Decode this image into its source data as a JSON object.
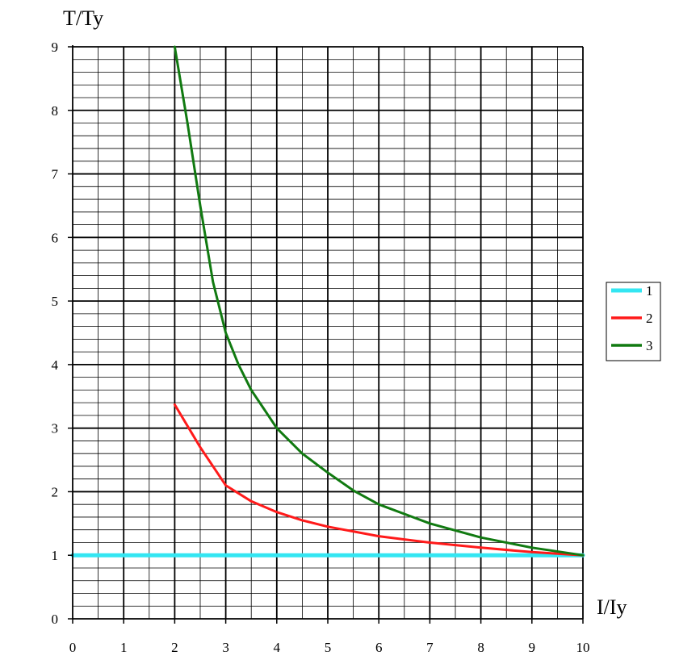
{
  "chart_data": {
    "type": "line",
    "xlabel": "I/Iy",
    "ylabel": "T/Ty",
    "xlim": [
      0,
      10
    ],
    "ylim": [
      0,
      9
    ],
    "x_ticks": [
      "0",
      "1",
      "2",
      "3",
      "4",
      "5",
      "6",
      "7",
      "8",
      "9",
      "10"
    ],
    "y_ticks": [
      "0",
      "1",
      "2",
      "3",
      "4",
      "5",
      "6",
      "7",
      "8",
      "9"
    ],
    "grid": true,
    "legend_position": "right",
    "series": [
      {
        "name": "1",
        "color": "#33e6f2",
        "x": [
          0,
          10
        ],
        "y": [
          1,
          1
        ]
      },
      {
        "name": "2",
        "color": "#ff1a1a",
        "x": [
          2,
          2.5,
          3,
          3.5,
          4,
          4.5,
          5,
          6,
          7,
          8,
          9,
          10
        ],
        "y": [
          3.37,
          2.7,
          2.1,
          1.85,
          1.68,
          1.55,
          1.45,
          1.3,
          1.2,
          1.12,
          1.05,
          1.0
        ]
      },
      {
        "name": "3",
        "color": "#117a11",
        "x": [
          2,
          2.25,
          2.5,
          2.75,
          3,
          3.25,
          3.5,
          3.75,
          4,
          4.5,
          5,
          5.5,
          6,
          7,
          8,
          9,
          10
        ],
        "y": [
          9.0,
          7.8,
          6.5,
          5.3,
          4.5,
          4.0,
          3.6,
          3.3,
          3.0,
          2.6,
          2.3,
          2.02,
          1.8,
          1.5,
          1.28,
          1.12,
          1.0
        ]
      }
    ]
  }
}
